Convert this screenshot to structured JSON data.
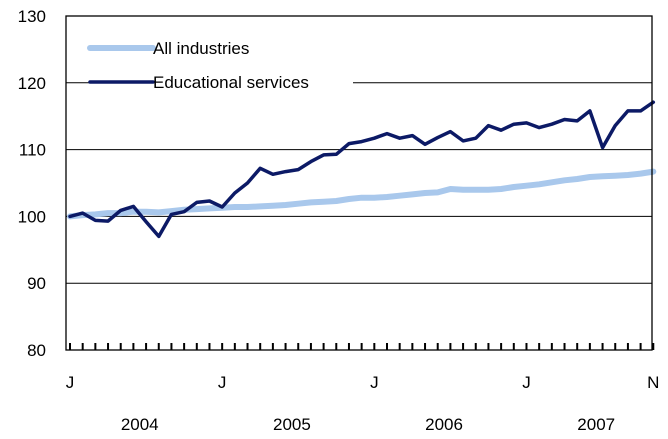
{
  "chart_data": {
    "type": "line",
    "title": "",
    "xlabel": "",
    "ylabel": "",
    "ylim": [
      80,
      130
    ],
    "yticks": [
      80,
      90,
      100,
      110,
      120,
      130
    ],
    "grid": "horizontal",
    "legend_position": "top-left",
    "x_start": "2004-01",
    "x_end": "2007-11",
    "x_tick_labels": [
      {
        "month_index": 0,
        "label": "J"
      },
      {
        "month_index": 12,
        "label": "J"
      },
      {
        "month_index": 24,
        "label": "J"
      },
      {
        "month_index": 36,
        "label": "J"
      },
      {
        "month_index": 46,
        "label": "N"
      }
    ],
    "year_labels": [
      {
        "year_start_index": 0,
        "label": "2004"
      },
      {
        "year_start_index": 12,
        "label": "2005"
      },
      {
        "year_start_index": 24,
        "label": "2006"
      },
      {
        "year_start_index": 36,
        "label": "2007"
      }
    ],
    "series": [
      {
        "name": "All industries",
        "color": "#a9c8ec",
        "values": [
          100.0,
          100.2,
          100.3,
          100.5,
          100.5,
          100.7,
          100.7,
          100.6,
          100.8,
          101.0,
          101.1,
          101.2,
          101.3,
          101.4,
          101.4,
          101.5,
          101.6,
          101.7,
          101.9,
          102.1,
          102.2,
          102.3,
          102.6,
          102.8,
          102.8,
          102.9,
          103.1,
          103.3,
          103.5,
          103.6,
          104.1,
          104.0,
          104.0,
          104.0,
          104.1,
          104.4,
          104.6,
          104.8,
          105.1,
          105.4,
          105.6,
          105.9,
          106.0,
          106.1,
          106.2,
          106.4,
          106.7
        ]
      },
      {
        "name": "Educational services",
        "color": "#0c1a66",
        "values": [
          100.0,
          100.5,
          99.4,
          99.3,
          100.9,
          101.5,
          99.2,
          97.0,
          100.3,
          100.7,
          102.1,
          102.3,
          101.4,
          103.5,
          105.0,
          107.2,
          106.3,
          106.7,
          107.0,
          108.2,
          109.2,
          109.3,
          110.9,
          111.2,
          111.7,
          112.4,
          111.7,
          112.1,
          110.8,
          111.8,
          112.7,
          111.3,
          111.7,
          113.6,
          112.9,
          113.8,
          114.0,
          113.3,
          113.8,
          114.5,
          114.3,
          115.8,
          110.3,
          113.6,
          115.8,
          115.8,
          117.1
        ]
      }
    ]
  }
}
